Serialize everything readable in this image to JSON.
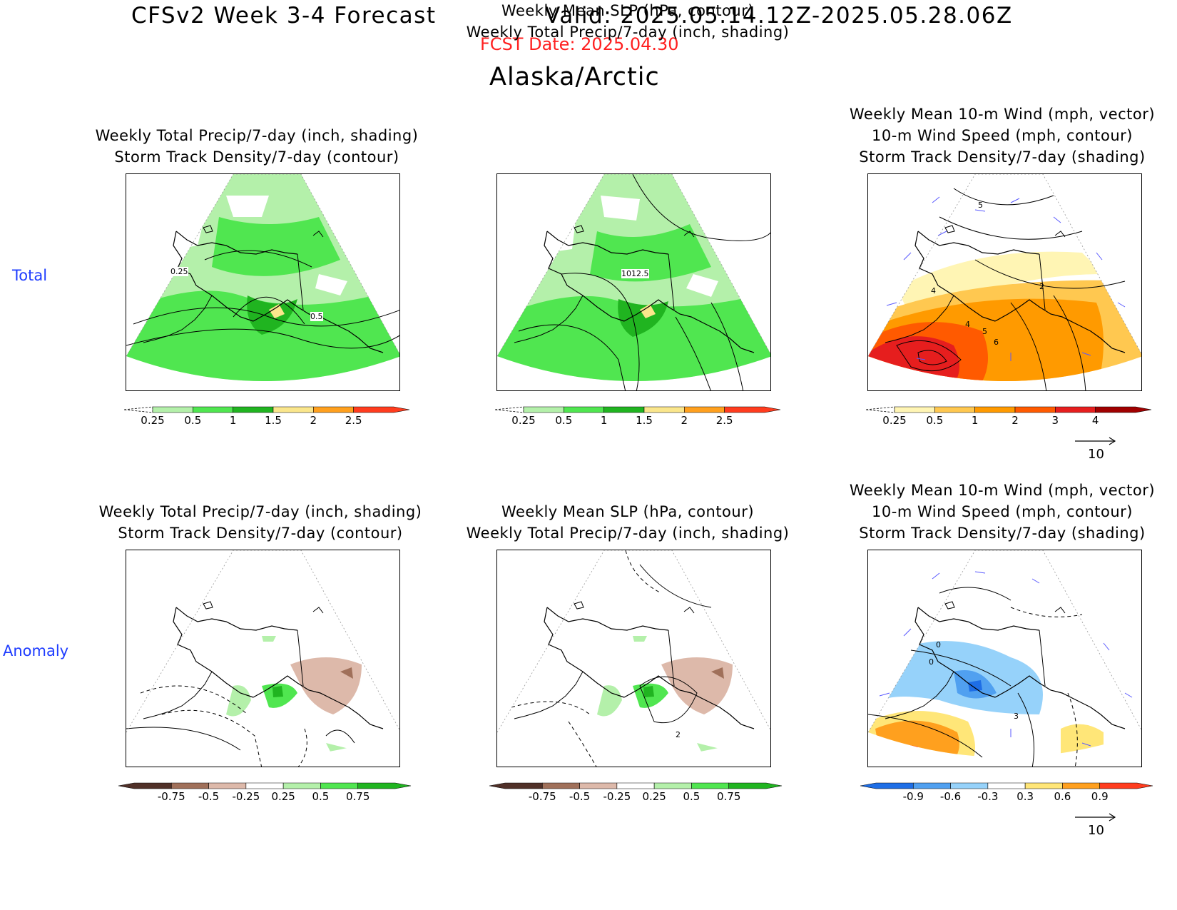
{
  "header": {
    "title": "CFSv2 Week 3-4 Forecast",
    "valid": "Valid: 2025.05.14.12Z-2025.05.28.06Z",
    "fcst_date": "FCST Date: 2025.04.30",
    "region": "Alaska/Arctic"
  },
  "rows": {
    "total": "Total",
    "anomaly": "Anomaly"
  },
  "titles": {
    "precip": [
      "Weekly Total Precip/7-day (inch, shading)",
      "Storm Track Density/7-day (contour)"
    ],
    "slp": [
      "Weekly Mean SLP (hPa, contour)",
      "Weekly Total Precip/7-day (inch, shading)"
    ],
    "wind": [
      "Weekly Mean 10-m Wind (mph, vector)",
      "10-m Wind Speed (mph, contour)",
      "Storm Track Density/7-day (shading)"
    ]
  },
  "contour_labels": {
    "total_precip": [
      "0.25",
      "0.5"
    ],
    "total_slp": [
      "1012.5"
    ],
    "total_wind": [
      "5",
      "4",
      "2",
      "4",
      "5",
      "6"
    ],
    "anom_slp": [
      "2"
    ],
    "anom_wind": [
      "0",
      "0",
      "3"
    ]
  },
  "colorbars": {
    "precip_total": {
      "labels": [
        "0.25",
        "0.5",
        "1",
        "1.5",
        "2",
        "2.5"
      ],
      "colors": [
        "#b4f0aa",
        "#50e650",
        "#20b420",
        "#fae68c",
        "#ffa01e",
        "#ff3c1e"
      ]
    },
    "storm_total": {
      "labels": [
        "0.25",
        "0.5",
        "1",
        "2",
        "3",
        "4"
      ],
      "colors": [
        "#fff5b4",
        "#ffc850",
        "#ff9a00",
        "#ff5a00",
        "#e61e1e",
        "#a00000"
      ]
    },
    "precip_anom": {
      "labels": [
        "-0.75",
        "-0.5",
        "-0.25",
        "0.25",
        "0.5",
        "0.75"
      ],
      "colors": [
        "#503028",
        "#a0705a",
        "#ddb9aa",
        "#ffffff",
        "#b4f0aa",
        "#50e650",
        "#20b420"
      ]
    },
    "storm_anom": {
      "labels": [
        "-0.9",
        "-0.6",
        "-0.3",
        "0.3",
        "0.6",
        "0.9"
      ],
      "colors": [
        "#1e6ee6",
        "#50a0f0",
        "#96d2fa",
        "#ffffff",
        "#ffe678",
        "#ffa01e",
        "#ff3c1e"
      ]
    }
  },
  "vector_reference": "10"
}
